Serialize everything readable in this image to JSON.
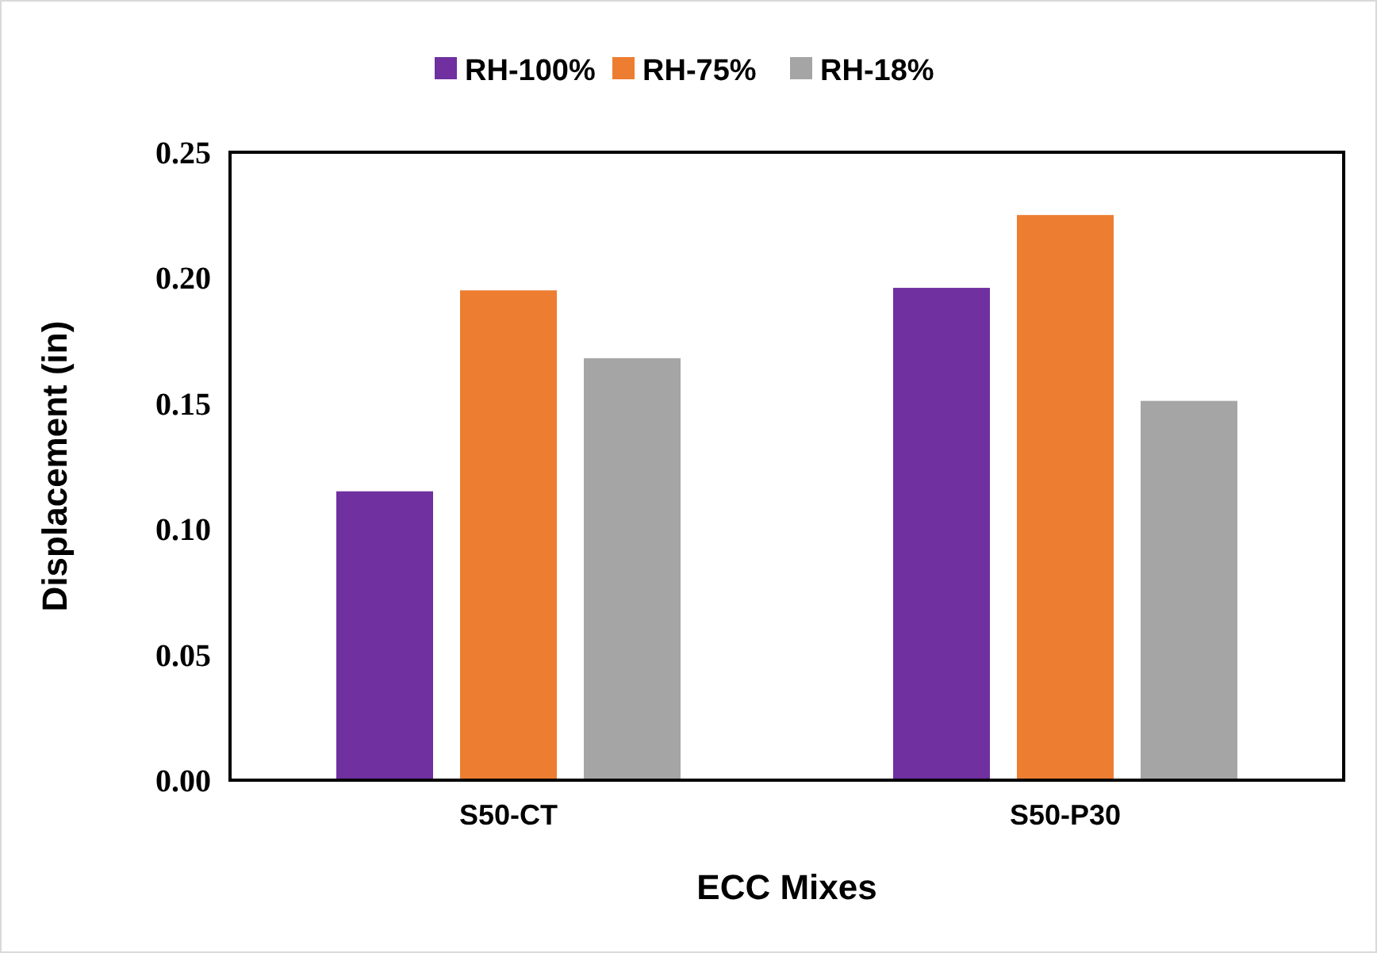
{
  "chart_data": {
    "type": "bar",
    "xlabel": "ECC Mixes",
    "ylabel": "Displacement (in)",
    "categories": [
      "S50-CT",
      "S50-P30"
    ],
    "series": [
      {
        "name": "RH-100%",
        "color": "#7030a0",
        "values": [
          0.115,
          0.196
        ]
      },
      {
        "name": "RH-75%",
        "color": "#ed7d31",
        "values": [
          0.195,
          0.225
        ]
      },
      {
        "name": "RH-18%",
        "color": "#a5a5a5",
        "values": [
          0.168,
          0.151
        ]
      }
    ],
    "ylim": [
      0,
      0.25
    ],
    "yticks": [
      {
        "value": 0,
        "label": "0.00"
      },
      {
        "value": 0.05,
        "label": "0.05"
      },
      {
        "value": 0.1,
        "label": "0.10"
      },
      {
        "value": 0.15,
        "label": "0.15"
      },
      {
        "value": 0.2,
        "label": "0.20"
      },
      {
        "value": 0.25,
        "label": "0.25"
      }
    ],
    "grid": false,
    "legend": "top"
  }
}
